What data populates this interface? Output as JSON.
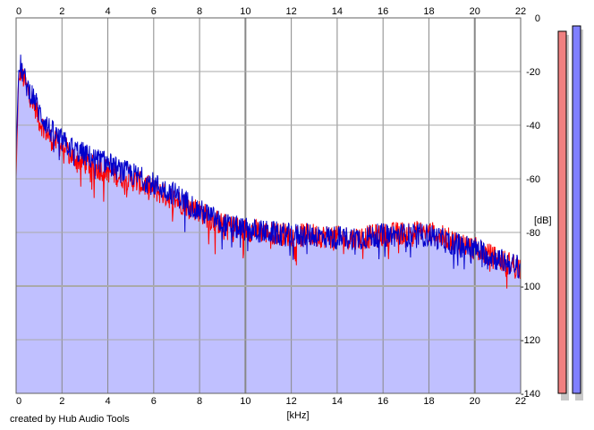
{
  "chart_data": {
    "type": "area",
    "title": "",
    "xlabel": "[kHz]",
    "ylabel": "[dB]",
    "xlim": [
      0,
      22
    ],
    "ylim": [
      -140,
      0
    ],
    "x_ticks": [
      0,
      2,
      4,
      6,
      8,
      10,
      12,
      14,
      16,
      18,
      20,
      22
    ],
    "y_ticks": [
      0,
      -20,
      -40,
      -60,
      -80,
      -100,
      -120,
      -140
    ],
    "x_ticks_top": true,
    "grid": true,
    "fill_color": "#c0c0ff",
    "series": [
      {
        "color": "#ff0000",
        "x": [
          0,
          0.1,
          0.2,
          0.3,
          0.5,
          0.8,
          1,
          1.5,
          2,
          2.5,
          3,
          3.5,
          4,
          4.5,
          5,
          5.5,
          6,
          6.5,
          7,
          7.5,
          8,
          8.5,
          9,
          10,
          11,
          12,
          13,
          14,
          15,
          16,
          17,
          18,
          19,
          20,
          21,
          22
        ],
        "values": [
          -60,
          -25,
          -20,
          -22,
          -27,
          -32,
          -38,
          -45,
          -48,
          -52,
          -54,
          -56,
          -57,
          -59,
          -60,
          -62,
          -64,
          -66,
          -68,
          -70,
          -72,
          -75,
          -77,
          -79,
          -80,
          -81,
          -81,
          -82,
          -82,
          -81,
          -80,
          -80,
          -83,
          -86,
          -90,
          -93
        ]
      },
      {
        "color": "#0000cc",
        "x": [
          0,
          0.1,
          0.2,
          0.3,
          0.5,
          0.8,
          1,
          1.5,
          2,
          2.5,
          3,
          3.5,
          4,
          4.5,
          5,
          5.5,
          6,
          6.5,
          7,
          7.5,
          8,
          8.5,
          9,
          10,
          11,
          12,
          13,
          14,
          15,
          16,
          17,
          18,
          19,
          20,
          21,
          22
        ],
        "values": [
          -50,
          -22,
          -18,
          -21,
          -26,
          -30,
          -35,
          -42,
          -46,
          -49,
          -51,
          -53,
          -54,
          -57,
          -58,
          -60,
          -62,
          -64,
          -66,
          -69,
          -72,
          -74,
          -77,
          -79,
          -80,
          -81,
          -81,
          -82,
          -82,
          -81,
          -81,
          -81,
          -84,
          -86,
          -90,
          -93
        ]
      }
    ],
    "level_meters": [
      {
        "color": "#f08080",
        "level": -5
      },
      {
        "color": "#8080ff",
        "level": -3
      }
    ]
  },
  "credit": "created by Hub Audio Tools"
}
